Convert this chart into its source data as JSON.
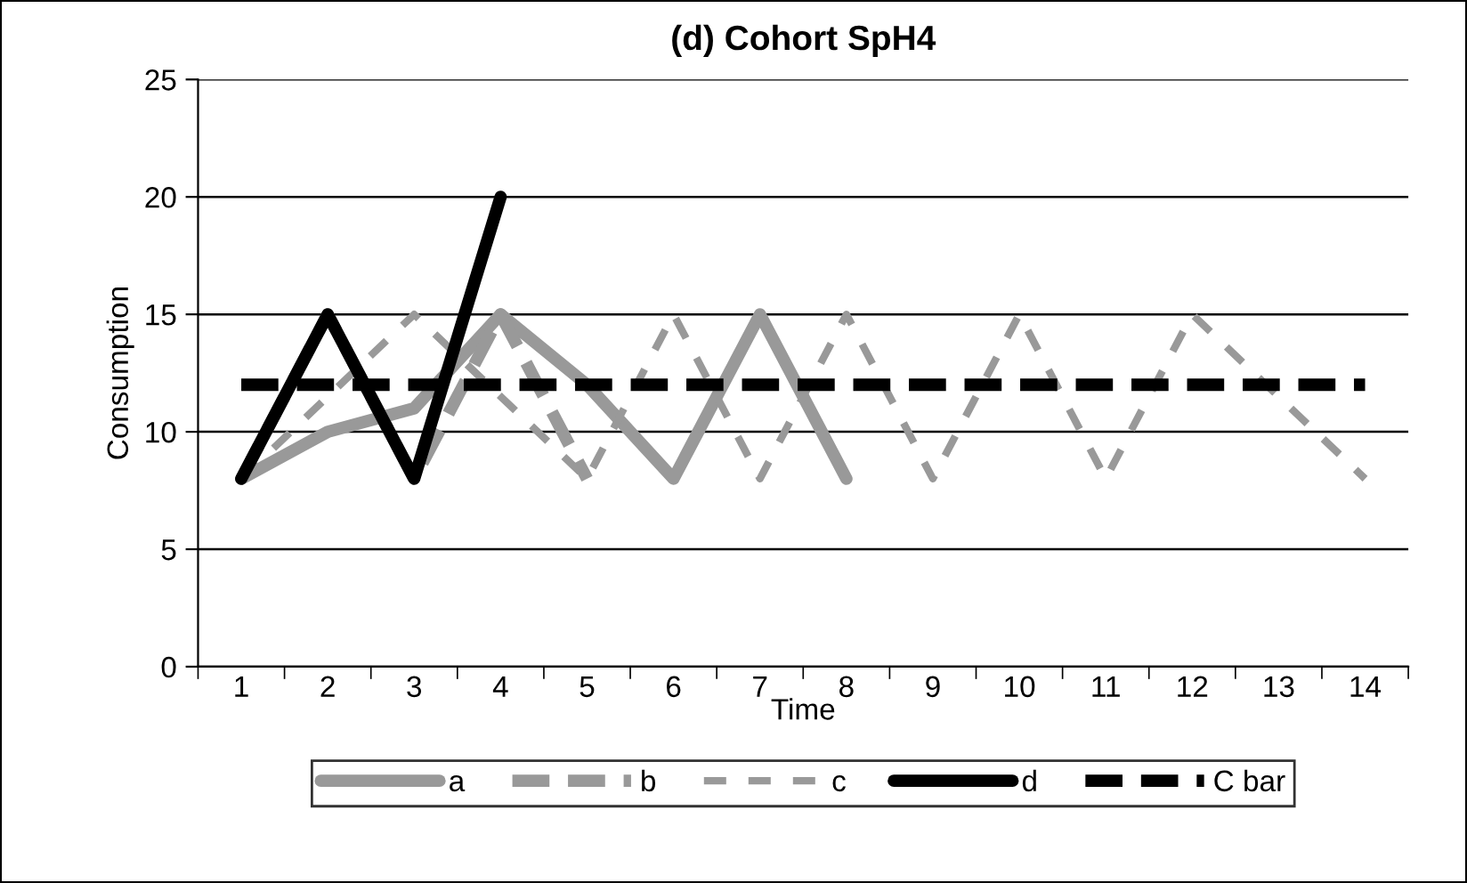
{
  "chart_data": {
    "type": "line",
    "title": "(d) Cohort SpH4",
    "xlabel": "Time",
    "ylabel": "Consumption",
    "categories": [
      "1",
      "2",
      "3",
      "4",
      "5",
      "6",
      "7",
      "8",
      "9",
      "10",
      "11",
      "12",
      "13",
      "14"
    ],
    "series": [
      {
        "name": "a",
        "color": "#999999",
        "line_style": "solid",
        "values": [
          8,
          10,
          11,
          15,
          12,
          8,
          15,
          8,
          null,
          null,
          null,
          null,
          null,
          null
        ]
      },
      {
        "name": "b",
        "color": "#999999",
        "line_style": "dashed",
        "values": [
          8,
          15,
          8,
          15,
          8,
          null,
          null,
          null,
          null,
          null,
          null,
          null,
          null,
          null
        ]
      },
      {
        "name": "c",
        "color": "#999999",
        "line_style": "dotted",
        "values": [
          8,
          11.5,
          15,
          11.5,
          8,
          15,
          8,
          15,
          8,
          15,
          8,
          15,
          11.5,
          8
        ]
      },
      {
        "name": "d",
        "color": "#000000",
        "line_style": "solid",
        "values": [
          8,
          15,
          8,
          20,
          null,
          null,
          null,
          null,
          null,
          null,
          null,
          null,
          null,
          null
        ]
      },
      {
        "name": "C bar",
        "color": "#000000",
        "line_style": "dashed",
        "values": [
          12,
          12,
          12,
          12,
          12,
          12,
          12,
          12,
          12,
          12,
          12,
          12,
          12,
          12
        ]
      }
    ],
    "ylim": [
      0,
      25
    ],
    "yticks": [
      0,
      5,
      10,
      15,
      20,
      25
    ],
    "grid": "y",
    "legend": "bottom",
    "marker": "none"
  }
}
